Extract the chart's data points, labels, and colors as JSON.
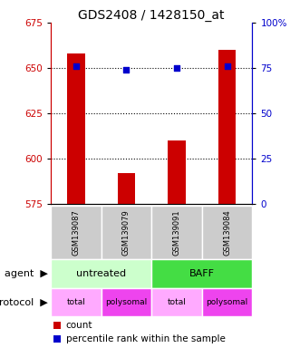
{
  "title": "GDS2408 / 1428150_at",
  "samples": [
    "GSM139087",
    "GSM139079",
    "GSM139091",
    "GSM139084"
  ],
  "bar_values": [
    658,
    592,
    610,
    660
  ],
  "bar_base": 575,
  "percentile_values": [
    76,
    74,
    75,
    76
  ],
  "ylim_left": [
    575,
    675
  ],
  "ylim_right": [
    0,
    100
  ],
  "yticks_left": [
    575,
    600,
    625,
    650,
    675
  ],
  "yticks_right": [
    0,
    25,
    50,
    75,
    100
  ],
  "yticklabels_right": [
    "0",
    "25",
    "50",
    "75",
    "100%"
  ],
  "bar_color": "#cc0000",
  "percentile_color": "#0000cc",
  "agent_row": [
    {
      "label": "untreated",
      "cols": [
        0,
        1
      ],
      "color": "#ccffcc"
    },
    {
      "label": "BAFF",
      "cols": [
        2,
        3
      ],
      "color": "#44dd44"
    }
  ],
  "protocol_row": [
    {
      "label": "total",
      "col": 0,
      "color": "#ffaaff"
    },
    {
      "label": "polysomal",
      "col": 1,
      "color": "#ee44ee"
    },
    {
      "label": "total",
      "col": 2,
      "color": "#ffaaff"
    },
    {
      "label": "polysomal",
      "col": 3,
      "color": "#ee44ee"
    }
  ],
  "gsm_bg_color": "#cccccc",
  "bar_color_hex": "#cc0000",
  "pct_color_hex": "#0000cc",
  "title_fontsize": 10,
  "tick_fontsize": 7.5,
  "gsm_fontsize": 6,
  "table_fontsize": 8,
  "legend_fontsize": 7.5
}
